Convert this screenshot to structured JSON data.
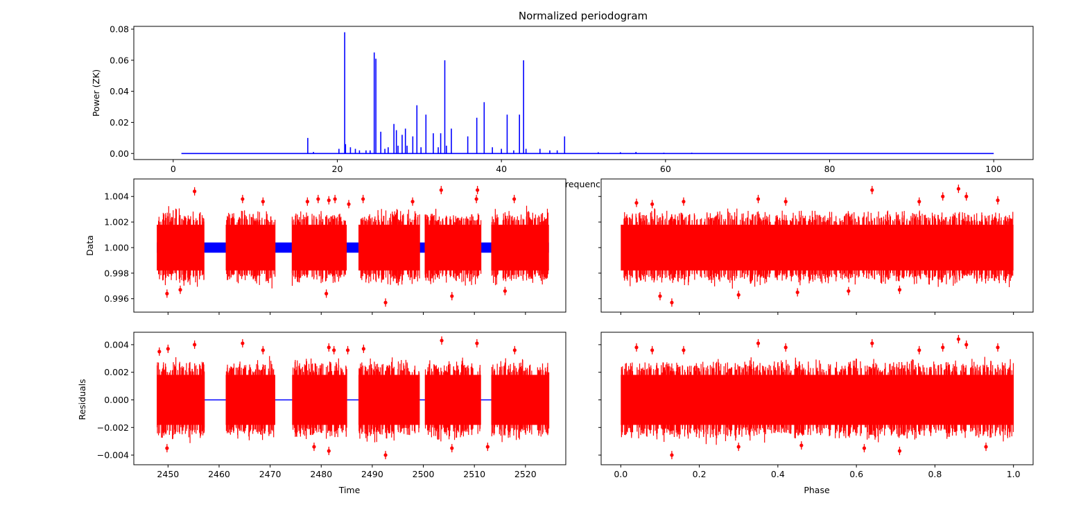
{
  "colors": {
    "periodogram": "#0000ff",
    "data_points": "#ff0000",
    "model": "#0000ff",
    "axes": "#000000",
    "background": "#ffffff"
  },
  "chart_data": [
    {
      "id": "periodogram",
      "type": "line",
      "title": "Normalized periodogram",
      "xlabel": "Frequency",
      "ylabel": "Power (ZK)",
      "xlim": [
        -4.8,
        104.8
      ],
      "ylim": [
        -0.0039,
        0.0818
      ],
      "xticks": [
        0,
        20,
        40,
        60,
        80,
        100
      ],
      "xtick_labels": [
        "0",
        "20",
        "40",
        "60",
        "80",
        "100"
      ],
      "yticks": [
        0.0,
        0.02,
        0.04,
        0.06,
        0.08
      ],
      "ytick_labels": [
        "0.00",
        "0.02",
        "0.04",
        "0.06",
        "0.08"
      ],
      "freq_range": [
        1,
        100
      ],
      "peaks": [
        [
          16.4,
          0.01
        ],
        [
          17.1,
          0.001
        ],
        [
          20.2,
          0.003
        ],
        [
          20.9,
          0.078
        ],
        [
          21.0,
          0.006
        ],
        [
          21.6,
          0.004
        ],
        [
          22.2,
          0.003
        ],
        [
          22.7,
          0.002
        ],
        [
          23.5,
          0.002
        ],
        [
          24.0,
          0.002
        ],
        [
          24.5,
          0.065
        ],
        [
          24.7,
          0.061
        ],
        [
          25.3,
          0.014
        ],
        [
          25.8,
          0.003
        ],
        [
          26.2,
          0.004
        ],
        [
          26.9,
          0.019
        ],
        [
          27.2,
          0.015
        ],
        [
          27.4,
          0.005
        ],
        [
          27.9,
          0.012
        ],
        [
          28.3,
          0.016
        ],
        [
          28.5,
          0.005
        ],
        [
          29.2,
          0.011
        ],
        [
          29.7,
          0.031
        ],
        [
          30.2,
          0.004
        ],
        [
          30.8,
          0.025
        ],
        [
          31.7,
          0.013
        ],
        [
          32.3,
          0.004
        ],
        [
          32.6,
          0.013
        ],
        [
          33.1,
          0.06
        ],
        [
          33.3,
          0.005
        ],
        [
          33.9,
          0.016
        ],
        [
          35.9,
          0.011
        ],
        [
          37.0,
          0.023
        ],
        [
          37.9,
          0.033
        ],
        [
          38.9,
          0.004
        ],
        [
          40.0,
          0.003
        ],
        [
          40.7,
          0.025
        ],
        [
          41.5,
          0.002
        ],
        [
          42.2,
          0.025
        ],
        [
          42.7,
          0.06
        ],
        [
          43.0,
          0.003
        ],
        [
          44.7,
          0.003
        ],
        [
          45.9,
          0.002
        ],
        [
          46.8,
          0.002
        ],
        [
          47.7,
          0.011
        ],
        [
          51.8,
          0.0008
        ],
        [
          54.5,
          0.0008
        ],
        [
          56.4,
          0.001
        ],
        [
          59.8,
          0.0005
        ],
        [
          63.2,
          0.0005
        ]
      ]
    },
    {
      "id": "data-vs-time",
      "type": "scatter",
      "xlabel": "",
      "ylabel": "Data",
      "xlim": [
        2443.3,
        2527.9
      ],
      "ylim": [
        0.99495,
        1.00537
      ],
      "xticks": [
        2450,
        2460,
        2470,
        2480,
        2490,
        2500,
        2510,
        2520
      ],
      "yticks": [
        0.996,
        0.998,
        1.0,
        1.002,
        1.004
      ],
      "ytick_labels": [
        "0.996",
        "0.998",
        "1.000",
        "1.002",
        "1.004"
      ],
      "segments": [
        [
          2447.8,
          2457.1
        ],
        [
          2461.3,
          2471.0
        ],
        [
          2474.3,
          2485.0
        ],
        [
          2487.3,
          2499.3
        ],
        [
          2500.3,
          2511.3
        ],
        [
          2513.3,
          2524.6
        ]
      ],
      "mean": 1.0,
      "scatter": 0.0009,
      "model_band": [
        0.9996,
        1.0004
      ],
      "outliers": [
        [
          2455.2,
          1.0044
        ],
        [
          2464.6,
          1.0038
        ],
        [
          2468.6,
          1.0036
        ],
        [
          2477.3,
          1.0036
        ],
        [
          2479.4,
          1.0038
        ],
        [
          2481.5,
          1.0037
        ],
        [
          2482.7,
          1.0038
        ],
        [
          2485.4,
          1.0034
        ],
        [
          2488.2,
          1.0038
        ],
        [
          2497.9,
          1.0036
        ],
        [
          2503.5,
          1.0045
        ],
        [
          2510.4,
          1.0038
        ],
        [
          2510.6,
          1.0045
        ],
        [
          2517.8,
          1.0038
        ],
        [
          2449.8,
          0.9964
        ],
        [
          2452.4,
          0.9967
        ],
        [
          2481.0,
          0.9964
        ],
        [
          2492.6,
          0.9957
        ],
        [
          2505.6,
          0.9962
        ],
        [
          2516.0,
          0.9966
        ]
      ]
    },
    {
      "id": "data-vs-phase",
      "type": "scatter",
      "xlabel": "",
      "ylabel": "",
      "xlim": [
        -0.05,
        1.05
      ],
      "ylim": [
        0.99495,
        1.00537
      ],
      "xticks": [
        0.0,
        0.2,
        0.4,
        0.6,
        0.8,
        1.0
      ],
      "yticks": [
        0.996,
        0.998,
        1.0,
        1.002,
        1.004
      ],
      "segments": [
        [
          0.0,
          1.0
        ]
      ],
      "mean": 1.0,
      "scatter": 0.0009,
      "outliers": [
        [
          0.04,
          1.0035
        ],
        [
          0.08,
          1.0034
        ],
        [
          0.16,
          1.0036
        ],
        [
          0.35,
          1.0038
        ],
        [
          0.42,
          1.0036
        ],
        [
          0.64,
          1.0045
        ],
        [
          0.76,
          1.0036
        ],
        [
          0.82,
          1.004
        ],
        [
          0.86,
          1.0046
        ],
        [
          0.88,
          1.004
        ],
        [
          0.96,
          1.0037
        ],
        [
          0.1,
          0.9962
        ],
        [
          0.13,
          0.9957
        ],
        [
          0.3,
          0.9963
        ],
        [
          0.45,
          0.9965
        ],
        [
          0.71,
          0.9967
        ],
        [
          0.58,
          0.9966
        ]
      ]
    },
    {
      "id": "residuals-vs-time",
      "type": "scatter",
      "xlabel": "Time",
      "ylabel": "Residuals",
      "xlim": [
        2443.3,
        2527.9
      ],
      "ylim": [
        -0.0047,
        0.0049
      ],
      "xticks": [
        2450,
        2460,
        2470,
        2480,
        2490,
        2500,
        2510,
        2520
      ],
      "xtick_labels": [
        "2450",
        "2460",
        "2470",
        "2480",
        "2490",
        "2500",
        "2510",
        "2520"
      ],
      "yticks": [
        -0.004,
        -0.002,
        0.0,
        0.002,
        0.004
      ],
      "ytick_labels": [
        "−0.004",
        "−0.002",
        "0.000",
        "0.002",
        "0.004"
      ],
      "segments": [
        [
          2447.8,
          2457.1
        ],
        [
          2461.3,
          2471.0
        ],
        [
          2474.3,
          2485.0
        ],
        [
          2487.3,
          2499.3
        ],
        [
          2500.3,
          2511.3
        ],
        [
          2513.3,
          2524.6
        ]
      ],
      "mean": 0.0,
      "scatter": 0.0009,
      "model_line": 0.0,
      "outliers": [
        [
          2448.3,
          0.0035
        ],
        [
          2450.0,
          0.0037
        ],
        [
          2455.2,
          0.004
        ],
        [
          2464.6,
          0.0041
        ],
        [
          2468.6,
          0.0036
        ],
        [
          2481.5,
          0.0038
        ],
        [
          2482.5,
          0.0036
        ],
        [
          2485.2,
          0.0036
        ],
        [
          2488.3,
          0.0037
        ],
        [
          2503.6,
          0.0043
        ],
        [
          2510.5,
          0.0041
        ],
        [
          2517.9,
          0.0036
        ],
        [
          2449.8,
          -0.0035
        ],
        [
          2481.5,
          -0.0037
        ],
        [
          2492.6,
          -0.004
        ],
        [
          2505.6,
          -0.0035
        ],
        [
          2512.6,
          -0.0034
        ],
        [
          2478.6,
          -0.0034
        ]
      ]
    },
    {
      "id": "residuals-vs-phase",
      "type": "scatter",
      "xlabel": "Phase",
      "ylabel": "",
      "xlim": [
        -0.05,
        1.05
      ],
      "ylim": [
        -0.0047,
        0.0049
      ],
      "xticks": [
        0.0,
        0.2,
        0.4,
        0.6,
        0.8,
        1.0
      ],
      "xtick_labels": [
        "0.0",
        "0.2",
        "0.4",
        "0.6",
        "0.8",
        "1.0"
      ],
      "yticks": [
        -0.004,
        -0.002,
        0.0,
        0.002,
        0.004
      ],
      "segments": [
        [
          0.0,
          1.0
        ]
      ],
      "mean": 0.0,
      "scatter": 0.0009,
      "outliers": [
        [
          0.04,
          0.0038
        ],
        [
          0.08,
          0.0036
        ],
        [
          0.16,
          0.0036
        ],
        [
          0.35,
          0.0041
        ],
        [
          0.42,
          0.0038
        ],
        [
          0.64,
          0.0041
        ],
        [
          0.76,
          0.0036
        ],
        [
          0.82,
          0.0038
        ],
        [
          0.86,
          0.0044
        ],
        [
          0.88,
          0.004
        ],
        [
          0.96,
          0.0038
        ],
        [
          0.13,
          -0.004
        ],
        [
          0.3,
          -0.0034
        ],
        [
          0.46,
          -0.0033
        ],
        [
          0.62,
          -0.0035
        ],
        [
          0.71,
          -0.0037
        ],
        [
          0.93,
          -0.0034
        ]
      ]
    }
  ]
}
